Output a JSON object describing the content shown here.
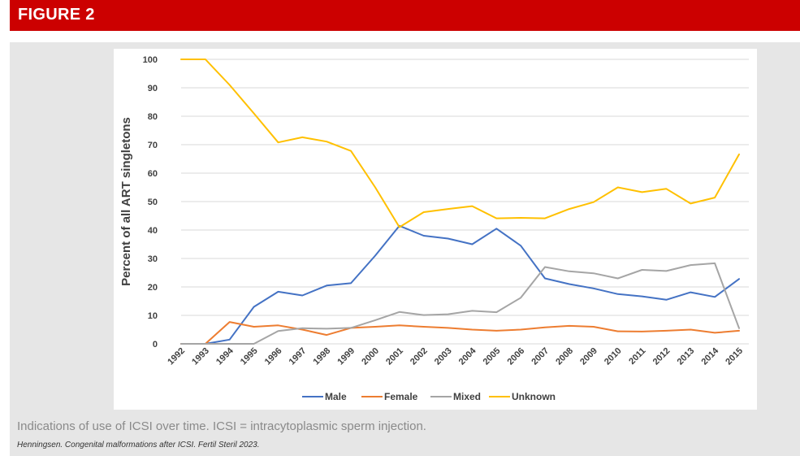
{
  "header": {
    "figure_label": "FIGURE 2"
  },
  "caption": "Indications of use of ICSI over time. ICSI = intracytoplasmic sperm injection.",
  "citation": "Henningsen. Congenital malformations after ICSI. Fertil Steril 2023.",
  "colors": {
    "banner": "#cc0000",
    "panel": "#e6e6e6",
    "grid": "#d9d9d9",
    "male": "#4472c4",
    "female": "#ed7d31",
    "mixed": "#a5a5a5",
    "unknown": "#ffc000"
  },
  "chart_data": {
    "type": "line",
    "title": "",
    "xlabel": "",
    "ylabel": "Percent of all ART singletons",
    "ylim": [
      0,
      100
    ],
    "yticks": [
      "0",
      "10",
      "20",
      "30",
      "40",
      "50",
      "60",
      "70",
      "80",
      "90",
      "100"
    ],
    "grid": "horizontal",
    "legend_position": "bottom",
    "categories": [
      "1992",
      "1993",
      "1994",
      "1995",
      "1996",
      "1997",
      "1998",
      "1999",
      "2000",
      "2001",
      "2002",
      "2003",
      "2004",
      "2005",
      "2006",
      "2007",
      "2008",
      "2009",
      "2010",
      "2011",
      "2012",
      "2013",
      "2014",
      "2015"
    ],
    "series": [
      {
        "name": "Male",
        "color": "#4472c4",
        "values": [
          0,
          0,
          1.5,
          13,
          18.3,
          17,
          20.5,
          21.3,
          31,
          41.5,
          38,
          37,
          35,
          40.5,
          34.5,
          23,
          21,
          19.5,
          17.5,
          16.7,
          15.5,
          18.1,
          16.5,
          22.8
        ]
      },
      {
        "name": "Female",
        "color": "#ed7d31",
        "values": [
          0,
          0,
          7.7,
          6,
          6.5,
          5,
          3.1,
          5.6,
          6,
          6.5,
          6,
          5.6,
          5,
          4.6,
          5,
          5.8,
          6.3,
          6,
          4.4,
          4.3,
          4.6,
          5,
          3.9,
          4.6
        ]
      },
      {
        "name": "Mixed",
        "color": "#a5a5a5",
        "values": [
          0,
          0,
          0,
          0,
          4.5,
          5.5,
          5.3,
          5.6,
          8.3,
          11.2,
          10.1,
          10.4,
          11.6,
          11.1,
          16.2,
          27,
          25.5,
          24.8,
          23,
          26,
          25.6,
          27.7,
          28.3,
          5.5
        ]
      },
      {
        "name": "Unknown",
        "color": "#ffc000",
        "values": [
          100,
          100,
          91,
          81,
          70.8,
          72.6,
          71.1,
          67.8,
          55,
          41,
          46.3,
          47.4,
          48.4,
          44.1,
          44.3,
          44.1,
          47.4,
          49.8,
          55,
          53.3,
          54.5,
          49.3,
          51.4,
          66.6
        ]
      }
    ]
  }
}
